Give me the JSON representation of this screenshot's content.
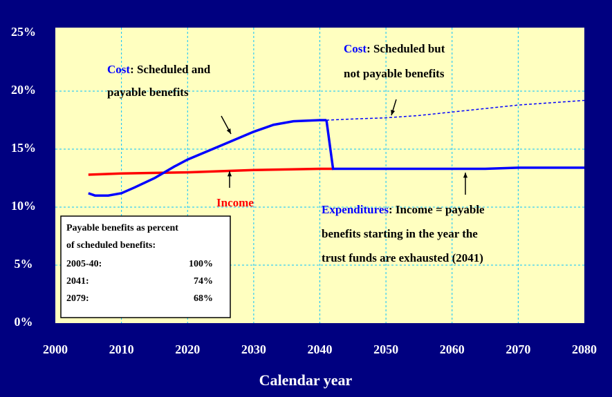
{
  "chart_data": {
    "type": "line",
    "x_label": "Calendar year",
    "xlim": [
      2000,
      2080
    ],
    "xticks": [
      2000,
      2010,
      2020,
      2030,
      2040,
      2050,
      2060,
      2070,
      2080
    ],
    "ylim": [
      0,
      25
    ],
    "yticks": [
      {
        "value": 0,
        "label": "0%"
      },
      {
        "value": 5,
        "label": "5%"
      },
      {
        "value": 10,
        "label": "10%"
      },
      {
        "value": 15,
        "label": "15%"
      },
      {
        "value": 20,
        "label": "20%"
      },
      {
        "value": 25,
        "label": "25%"
      }
    ],
    "grid": true,
    "series": [
      {
        "color": "#0000ff",
        "dashed": false,
        "x": [
          2005,
          2006,
          2008,
          2010,
          2012,
          2015,
          2018,
          2020,
          2025,
          2030,
          2033,
          2036,
          2040,
          2041
        ],
        "values": [
          11.2,
          11.0,
          11.0,
          11.2,
          11.7,
          12.5,
          13.5,
          14.1,
          15.3,
          16.5,
          17.1,
          17.4,
          17.5,
          17.5
        ]
      },
      {
        "color": "#0000ff",
        "dashed": true,
        "x": [
          2041,
          2045,
          2050,
          2055,
          2060,
          2065,
          2070,
          2075,
          2080
        ],
        "values": [
          17.5,
          17.6,
          17.7,
          17.9,
          18.2,
          18.5,
          18.8,
          19.0,
          19.2
        ]
      },
      {
        "color": "#ff0000",
        "dashed": false,
        "x": [
          2005,
          2010,
          2020,
          2030,
          2040,
          2042
        ],
        "values": [
          12.8,
          12.9,
          13.0,
          13.2,
          13.3,
          13.3
        ]
      },
      {
        "color": "#0000ff",
        "dashed": false,
        "x": [
          2041,
          2042,
          2050,
          2060,
          2065,
          2070,
          2080
        ],
        "values": [
          17.5,
          13.3,
          13.3,
          13.3,
          13.3,
          13.4,
          13.4
        ]
      }
    ],
    "annotations": [
      {
        "highlight": "Cost",
        "color": "#0000ff",
        "lines": [
          ": Scheduled and",
          "payable benefits"
        ]
      },
      {
        "highlight": "Cost",
        "color": "#0000ff",
        "lines": [
          ": Scheduled but",
          "not payable benefits"
        ]
      },
      {
        "highlight": "Income",
        "color": "#ff0000",
        "lines": []
      },
      {
        "highlight": "Expenditures",
        "color": "#0000ff",
        "lines": [
          ": Income = payable",
          "benefits starting in the year the",
          "trust funds are exhausted (2041)"
        ]
      }
    ],
    "note_box": {
      "title_lines": [
        "Payable benefits as percent",
        "of scheduled benefits:"
      ],
      "rows": [
        [
          "2005-40:",
          "100%"
        ],
        [
          "2041:",
          "74%"
        ],
        [
          "2079:",
          "68%"
        ]
      ]
    }
  }
}
